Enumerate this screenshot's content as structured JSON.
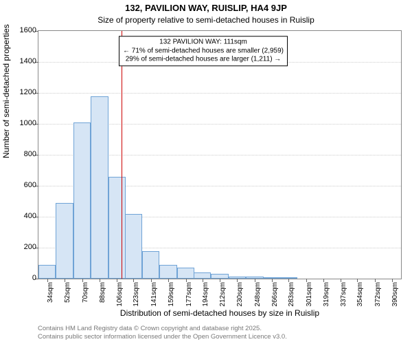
{
  "chart": {
    "type": "histogram",
    "title_line1": "132, PAVILION WAY, RUISLIP, HA4 9JP",
    "title_line2": "Size of property relative to semi-detached houses in Ruislip",
    "ylabel": "Number of semi-detached properties",
    "xlabel": "Distribution of semi-detached houses by size in Ruislip",
    "title_fontsize": 13,
    "subtitle_fontsize": 12,
    "axis_label_fontsize": 12,
    "tick_fontsize": 11,
    "xtick_fontsize": 10,
    "background_color": "#ffffff",
    "axis_color": "#888888",
    "grid_color": "#cccccc",
    "bar_fill": "#d6e5f5",
    "bar_border": "#6fa3d6",
    "reference_line_color": "#cc0000",
    "ylim": [
      0,
      1600
    ],
    "ytick_step": 200,
    "yticks": [
      0,
      200,
      400,
      600,
      800,
      1000,
      1200,
      1400,
      1600
    ],
    "xticks": [
      "34sqm",
      "52sqm",
      "70sqm",
      "88sqm",
      "106sqm",
      "123sqm",
      "141sqm",
      "159sqm",
      "177sqm",
      "194sqm",
      "212sqm",
      "230sqm",
      "248sqm",
      "266sqm",
      "283sqm",
      "301sqm",
      "319sqm",
      "337sqm",
      "354sqm",
      "372sqm",
      "390sqm"
    ],
    "x_range_sqm": [
      25,
      399
    ],
    "categories_sqm": [
      34,
      52,
      70,
      88,
      106,
      123,
      141,
      159,
      177,
      194,
      212,
      230,
      248,
      266,
      283
    ],
    "values": [
      90,
      490,
      1010,
      1180,
      660,
      420,
      180,
      90,
      70,
      40,
      30,
      12,
      12,
      8,
      5
    ],
    "bar_width_sqm": 18,
    "reference_value_sqm": 111,
    "annotation": {
      "line1": "132 PAVILION WAY: 111sqm",
      "line2": "← 71% of semi-detached houses are smaller (2,959)",
      "line3": "29% of semi-detached houses are larger (1,211) →",
      "x_center_sqm": 195,
      "y_value": 1470,
      "border_color": "#000000",
      "background": "#ffffff",
      "fontsize": 10
    }
  },
  "footer": {
    "line1": "Contains HM Land Registry data © Crown copyright and database right 2025.",
    "line2": "Contains public sector information licensed under the Open Government Licence v3.0.",
    "color": "#777777",
    "fontsize": 9.5
  }
}
